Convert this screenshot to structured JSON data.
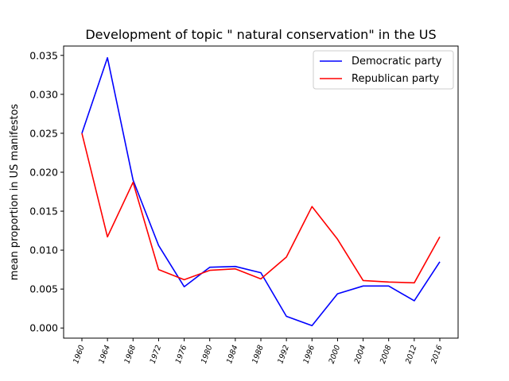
{
  "chart_data": {
    "type": "line",
    "title": "Development of topic \" natural conservation\" in the US",
    "xlabel": "",
    "ylabel": "mean proportion in US manifestos",
    "categories": [
      "1960",
      "1964",
      "1968",
      "1972",
      "1976",
      "1980",
      "1984",
      "1988",
      "1992",
      "1996",
      "2000",
      "2004",
      "2008",
      "2012",
      "2016"
    ],
    "ylim": [
      -0.0013,
      0.0362
    ],
    "yticks": [
      "0.000",
      "0.005",
      "0.010",
      "0.015",
      "0.020",
      "0.025",
      "0.030",
      "0.035"
    ],
    "legend_position": "upper-right",
    "grid": false,
    "series": [
      {
        "name": "Democratic party",
        "color": "#0000ff",
        "values": [
          0.025,
          0.0347,
          0.019,
          0.0106,
          0.0053,
          0.0078,
          0.0079,
          0.0071,
          0.0015,
          0.0003,
          0.0044,
          0.0054,
          0.0054,
          0.0035,
          0.0085
        ]
      },
      {
        "name": "Republican party",
        "color": "#ff0000",
        "values": [
          0.025,
          0.0117,
          0.0187,
          0.0075,
          0.0062,
          0.0074,
          0.0076,
          0.0063,
          0.0091,
          0.0156,
          0.0114,
          0.0061,
          0.0059,
          0.0058,
          0.0117
        ]
      }
    ]
  }
}
